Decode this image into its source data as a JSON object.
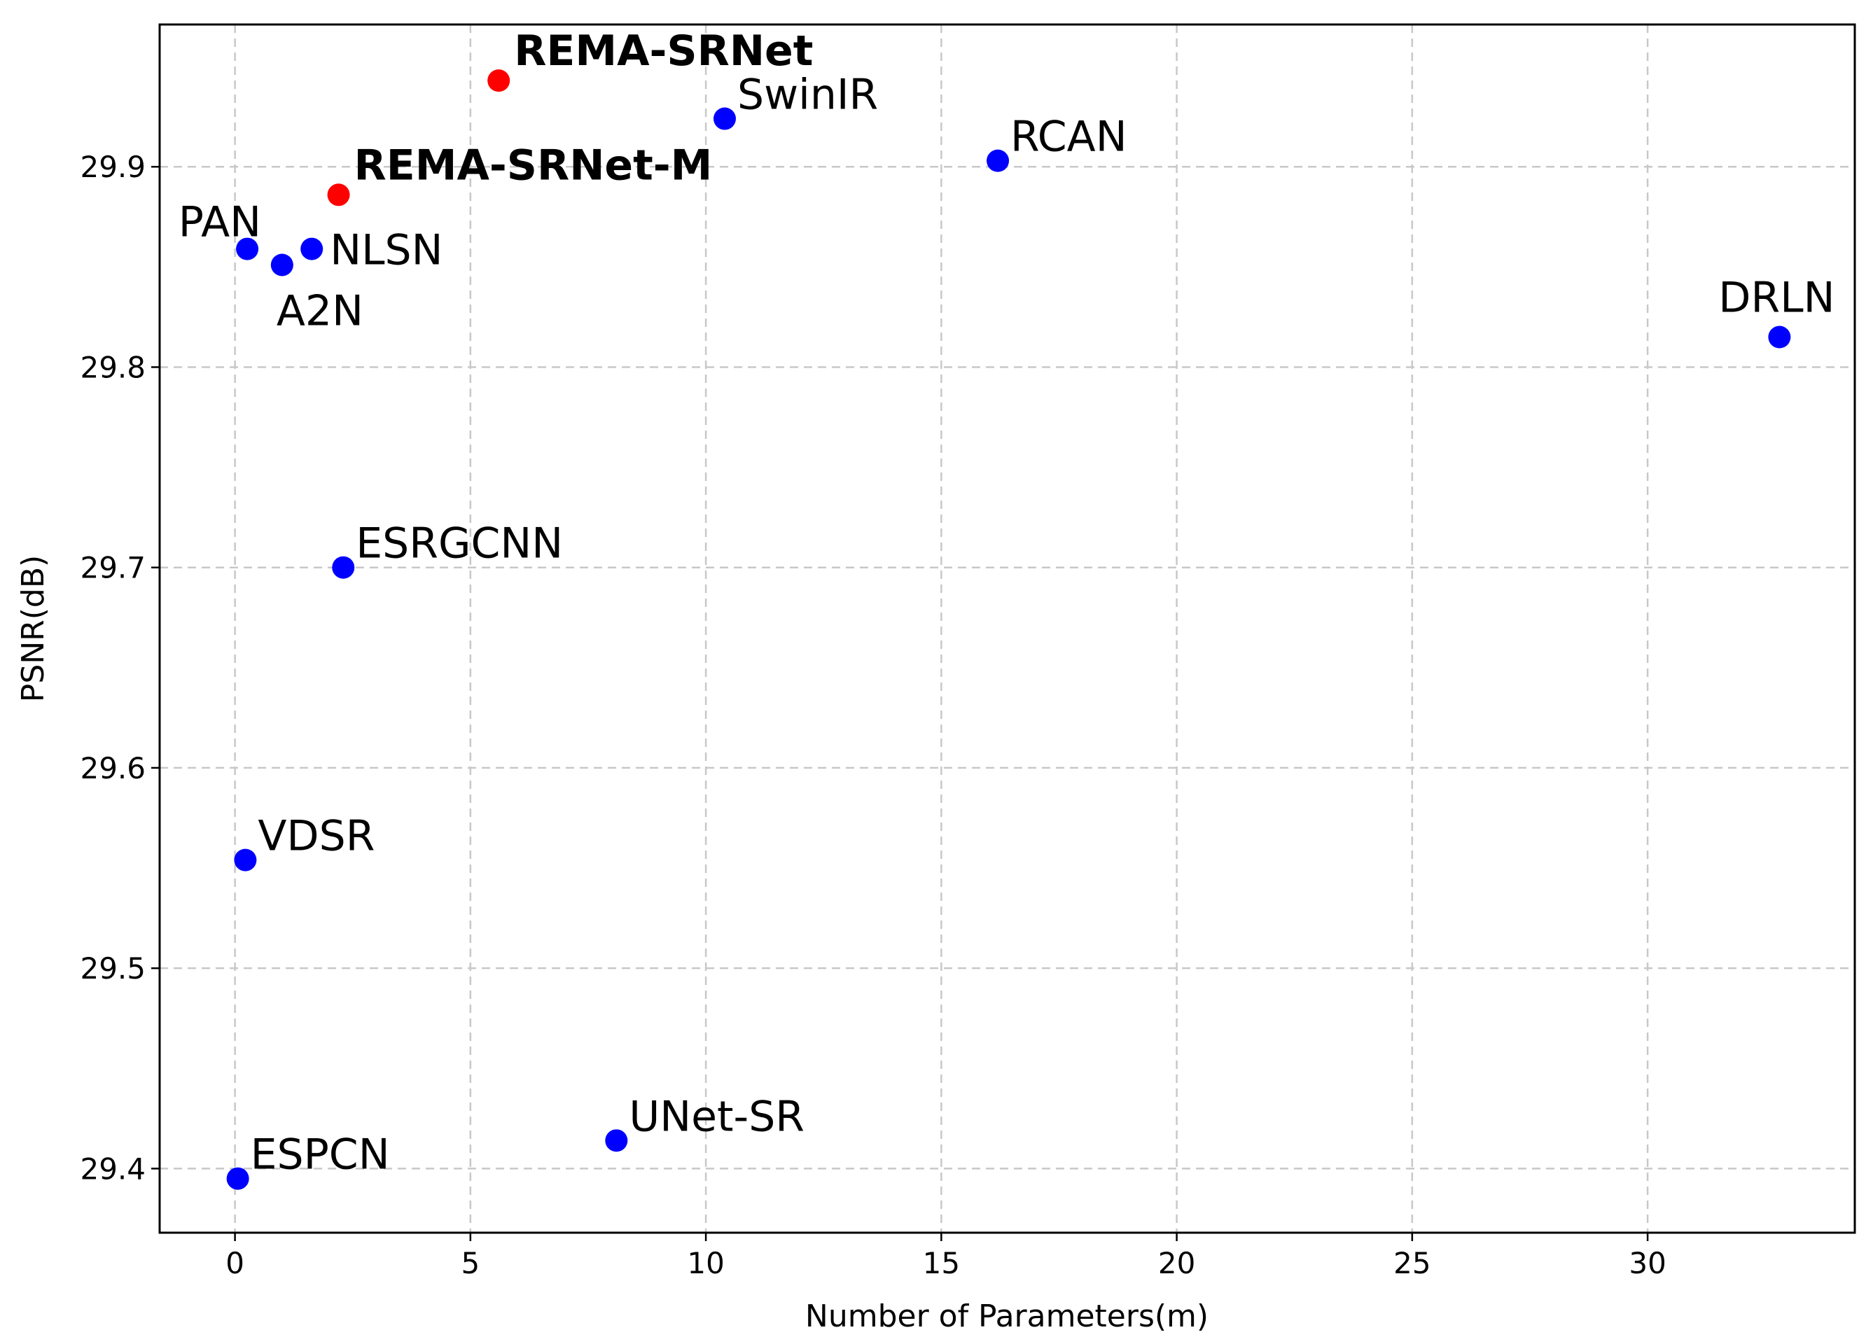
{
  "chart_data": {
    "type": "scatter",
    "title": "",
    "xlabel": "Number of Parameters(m)",
    "ylabel": "PSNR(dB)",
    "xlim": [
      -1.6,
      34.4
    ],
    "ylim": [
      29.368,
      29.971
    ],
    "x_ticks": [
      0,
      5,
      10,
      15,
      20,
      25,
      30
    ],
    "y_ticks": [
      29.4,
      29.5,
      29.6,
      29.7,
      29.8,
      29.9
    ],
    "grid": true,
    "legend": "none",
    "colors": {
      "proposed": "#ff0000",
      "baseline": "#0000ff"
    },
    "points": [
      {
        "label": "REMA-SRNet",
        "x": 5.6,
        "y": 29.943,
        "group": "proposed",
        "bold": true,
        "label_pos": "upper-right"
      },
      {
        "label": "REMA-SRNet-M",
        "x": 2.2,
        "y": 29.886,
        "group": "proposed",
        "bold": true,
        "label_pos": "upper-right"
      },
      {
        "label": "SwinIR",
        "x": 10.4,
        "y": 29.924,
        "group": "baseline",
        "bold": false,
        "label_pos": "upper-right"
      },
      {
        "label": "RCAN",
        "x": 16.2,
        "y": 29.903,
        "group": "baseline",
        "bold": false,
        "label_pos": "upper-right"
      },
      {
        "label": "PAN",
        "x": 0.26,
        "y": 29.859,
        "group": "baseline",
        "bold": false,
        "label_pos": "upper-left"
      },
      {
        "label": "A2N",
        "x": 1.0,
        "y": 29.851,
        "group": "baseline",
        "bold": false,
        "label_pos": "below"
      },
      {
        "label": "NLSN",
        "x": 1.63,
        "y": 29.859,
        "group": "baseline",
        "bold": false,
        "label_pos": "right"
      },
      {
        "label": "DRLN",
        "x": 32.8,
        "y": 29.815,
        "group": "baseline",
        "bold": false,
        "label_pos": "above"
      },
      {
        "label": "ESRGCNN",
        "x": 2.3,
        "y": 29.7,
        "group": "baseline",
        "bold": false,
        "label_pos": "upper-right"
      },
      {
        "label": "VDSR",
        "x": 0.22,
        "y": 29.554,
        "group": "baseline",
        "bold": false,
        "label_pos": "upper-right"
      },
      {
        "label": "UNet-SR",
        "x": 8.1,
        "y": 29.414,
        "group": "baseline",
        "bold": false,
        "label_pos": "upper-right"
      },
      {
        "label": "ESPCN",
        "x": 0.06,
        "y": 29.395,
        "group": "baseline",
        "bold": false,
        "label_pos": "upper-right"
      }
    ]
  }
}
